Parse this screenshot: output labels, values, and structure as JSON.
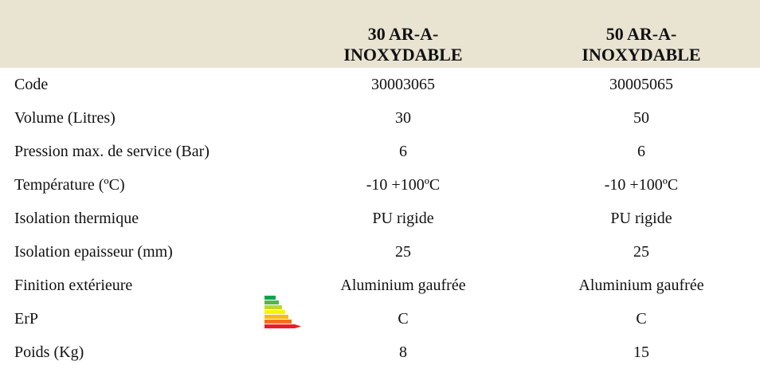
{
  "table": {
    "columns": [
      "30 AR-A-INOXYDABLE",
      "50 AR-A-INOXYDABLE"
    ],
    "rows": [
      [
        "Code",
        "30003065",
        "30005065"
      ],
      [
        "Volume (Litres)",
        "30",
        "50"
      ],
      [
        "Pression max. de service (Bar)",
        "6",
        "6"
      ],
      [
        "Température (ºC)",
        "-10 +100ºC",
        "-10 +100ºC"
      ],
      [
        "Isolation thermique",
        "PU rigide",
        "PU rigide"
      ],
      [
        "Isolation epaisseur (mm)",
        "25",
        "25"
      ],
      [
        "Finition extérieure",
        "Aluminium gaufrée",
        "Aluminium gaufrée"
      ],
      [
        "ErP",
        "C",
        "C"
      ],
      [
        "Poids (Kg)",
        "8",
        "15"
      ]
    ]
  }
}
